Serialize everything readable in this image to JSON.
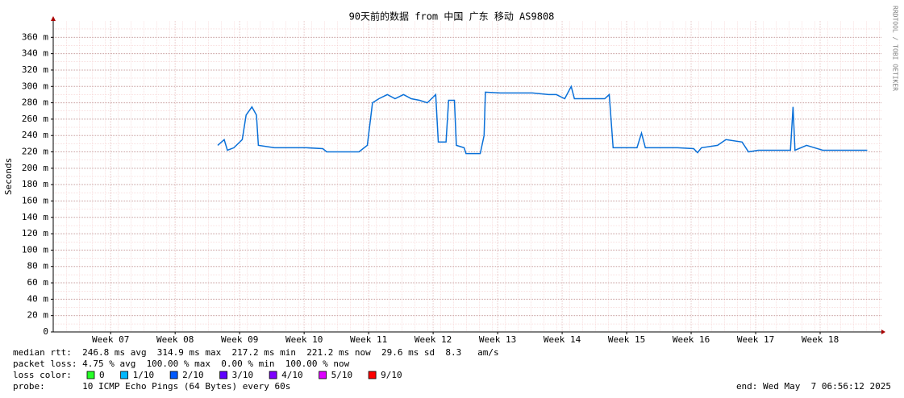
{
  "chart_data": {
    "type": "line",
    "title": "90天前的数据 from 中国 广东 移动 AS9808",
    "y_label": "Seconds",
    "watermark": "RRDTOOL / TOBI OETIKER",
    "xlim": [
      6.11,
      18.95
    ],
    "xticks": [
      {
        "value": 7,
        "label": "Week 07"
      },
      {
        "value": 8,
        "label": "Week 08"
      },
      {
        "value": 9,
        "label": "Week 09"
      },
      {
        "value": 10,
        "label": "Week 10"
      },
      {
        "value": 11,
        "label": "Week 11"
      },
      {
        "value": 12,
        "label": "Week 12"
      },
      {
        "value": 13,
        "label": "Week 13"
      },
      {
        "value": 14,
        "label": "Week 14"
      },
      {
        "value": 15,
        "label": "Week 15"
      },
      {
        "value": 16,
        "label": "Week 16"
      },
      {
        "value": 17,
        "label": "Week 17"
      },
      {
        "value": 18,
        "label": "Week 18"
      }
    ],
    "ylim": [
      0,
      0.38
    ],
    "yticks": [
      0,
      {
        "value": 0.02,
        "label": "20 m"
      },
      {
        "value": 0.04,
        "label": "40 m"
      },
      {
        "value": 0.06,
        "label": "60 m"
      },
      {
        "value": 0.08,
        "label": "80 m"
      },
      {
        "value": 0.1,
        "label": "100 m"
      },
      {
        "value": 0.12,
        "label": "120 m"
      },
      {
        "value": 0.14,
        "label": "140 m"
      },
      {
        "value": 0.16,
        "label": "160 m"
      },
      {
        "value": 0.18,
        "label": "180 m"
      },
      {
        "value": 0.2,
        "label": "200 m"
      },
      {
        "value": 0.22,
        "label": "220 m"
      },
      {
        "value": 0.24,
        "label": "240 m"
      },
      {
        "value": 0.26,
        "label": "260 m"
      },
      {
        "value": 0.28,
        "label": "280 m"
      },
      {
        "value": 0.3,
        "label": "300 m"
      },
      {
        "value": 0.32,
        "label": "320 m"
      },
      {
        "value": 0.34,
        "label": "340 m"
      },
      {
        "value": 0.36,
        "label": "360 m"
      }
    ],
    "grid": true,
    "x": [
      8.66,
      8.76,
      8.81,
      8.91,
      9.04,
      9.1,
      9.19,
      9.26,
      9.29,
      9.54,
      9.79,
      10.04,
      10.29,
      10.35,
      10.66,
      10.85,
      10.98,
      11.06,
      11.16,
      11.29,
      11.41,
      11.54,
      11.66,
      11.79,
      11.91,
      12.04,
      12.08,
      12.2,
      12.24,
      12.33,
      12.36,
      12.48,
      12.51,
      12.73,
      12.79,
      12.81,
      13.04,
      13.29,
      13.54,
      13.79,
      13.91,
      14.04,
      14.14,
      14.19,
      14.41,
      14.66,
      14.73,
      14.79,
      15.16,
      15.23,
      15.29,
      15.79,
      16.04,
      16.1,
      16.16,
      16.41,
      16.54,
      16.79,
      16.89,
      17.04,
      17.29,
      17.54,
      17.58,
      17.61,
      17.79,
      18.04,
      18.29,
      18.54,
      18.73
    ],
    "series": [
      {
        "name": "median rtt",
        "color": "#0a70d8",
        "values": [
          0.228,
          0.235,
          0.222,
          0.225,
          0.235,
          0.265,
          0.275,
          0.265,
          0.228,
          0.225,
          0.225,
          0.225,
          0.224,
          0.22,
          0.22,
          0.22,
          0.228,
          0.28,
          0.285,
          0.29,
          0.285,
          0.29,
          0.285,
          0.283,
          0.28,
          0.29,
          0.232,
          0.232,
          0.283,
          0.283,
          0.228,
          0.225,
          0.218,
          0.218,
          0.24,
          0.293,
          0.292,
          0.292,
          0.292,
          0.29,
          0.29,
          0.285,
          0.3,
          0.285,
          0.285,
          0.285,
          0.29,
          0.225,
          0.225,
          0.243,
          0.225,
          0.225,
          0.224,
          0.219,
          0.225,
          0.228,
          0.235,
          0.232,
          0.22,
          0.222,
          0.222,
          0.222,
          0.275,
          0.222,
          0.228,
          0.222,
          0.222,
          0.222,
          0.222
        ]
      }
    ],
    "stats": [
      "median rtt:  246.8 ms avg  314.9 ms max  217.2 ms min  221.2 ms now  29.6 ms sd  8.3   am/s",
      "packet loss: 4.75 % avg  100.00 % max  0.00 % min  100.00 % now"
    ],
    "loss_title": "loss color:",
    "loss_colors": [
      {
        "label": "0",
        "color": "#26ff26"
      },
      {
        "label": "1/10",
        "color": "#00b8ff"
      },
      {
        "label": "2/10",
        "color": "#0059ff"
      },
      {
        "label": "3/10",
        "color": "#5e00ff"
      },
      {
        "label": "4/10",
        "color": "#7e00ff"
      },
      {
        "label": "5/10",
        "color": "#dd00ff"
      },
      {
        "label": "9/10",
        "color": "#ff0000"
      }
    ],
    "probe": "probe:       10 ICMP Echo Pings (64 Bytes) every 60s",
    "end": "end: Wed May  7 06:56:12 2025"
  }
}
